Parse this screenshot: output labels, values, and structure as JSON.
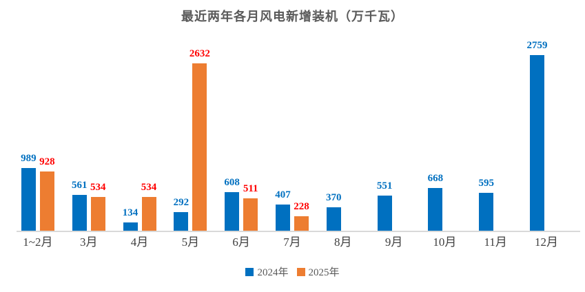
{
  "title": "最近两年各月风电新增装机（万千瓦）",
  "colors": {
    "series_2024": "#0070C0",
    "series_2025": "#ED7D31",
    "label_2024": "#0070C0",
    "label_2025": "#FF0000",
    "axis_line": "#D9D9D9",
    "title_text": "#595959",
    "x_label_text": "#404040",
    "background": "#FFFFFF"
  },
  "legend": {
    "position": "bottom",
    "items": [
      {
        "label": "2024年",
        "color": "#0070C0"
      },
      {
        "label": "2025年",
        "color": "#ED7D31"
      }
    ]
  },
  "chart_data": {
    "type": "bar",
    "title": "最近两年各月风电新增装机（万千瓦）",
    "xlabel": "",
    "ylabel": "",
    "ylim": [
      0,
      2759
    ],
    "grid": false,
    "data_labels": true,
    "legend_position": "bottom",
    "categories": [
      "1~2月",
      "3月",
      "4月",
      "5月",
      "6月",
      "7月",
      "8月",
      "9月",
      "10月",
      "11月",
      "12月"
    ],
    "series": [
      {
        "name": "2024年",
        "color": "#0070C0",
        "label_color": "#0070C0",
        "values": [
          989,
          561,
          134,
          292,
          608,
          407,
          370,
          551,
          668,
          595,
          2759
        ]
      },
      {
        "name": "2025年",
        "color": "#ED7D31",
        "label_color": "#FF0000",
        "values": [
          928,
          534,
          534,
          2632,
          511,
          228,
          null,
          null,
          null,
          null,
          null
        ]
      }
    ]
  }
}
